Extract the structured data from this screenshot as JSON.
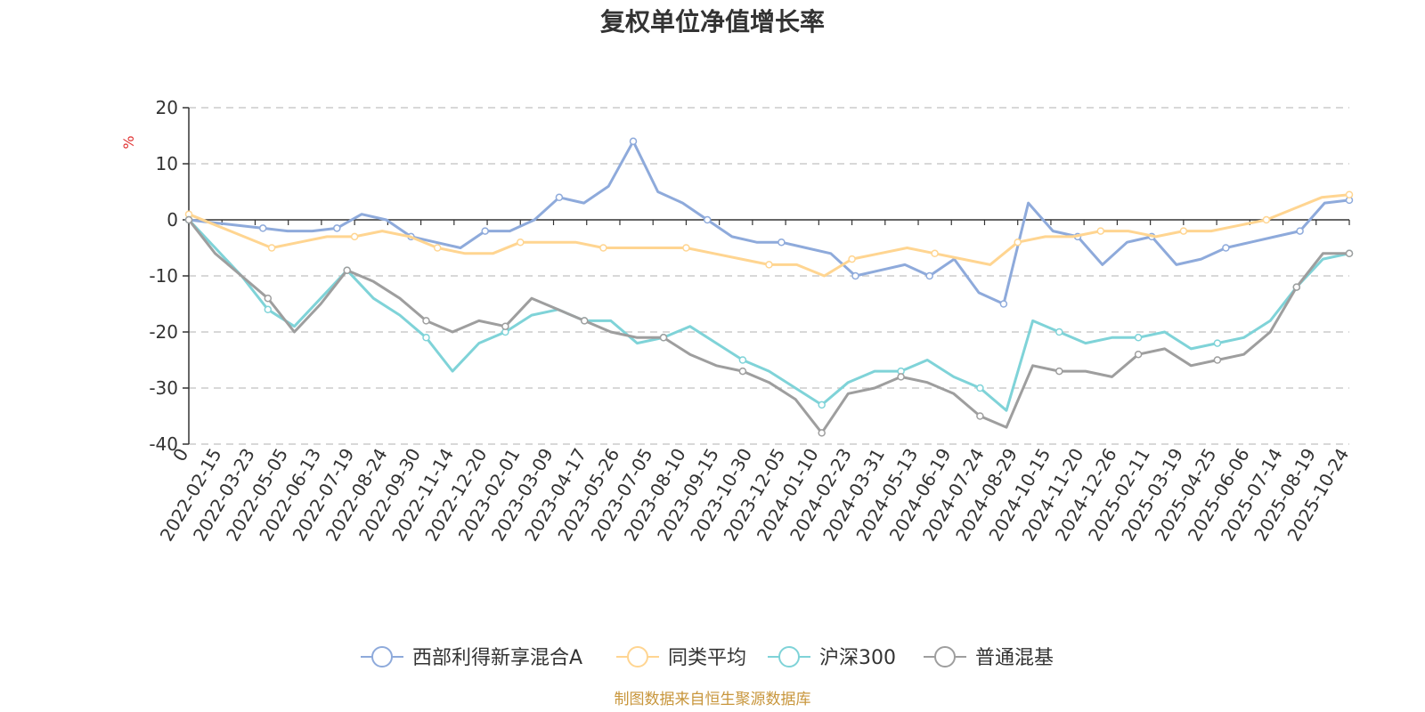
{
  "chart_data": {
    "type": "line",
    "title": "复权单位净值增长率",
    "ylabel": "%",
    "ylim": [
      -40,
      20
    ],
    "yticks": [
      20,
      10,
      0,
      -10,
      -20,
      -30,
      -40
    ],
    "grid": true,
    "legend": "bottom",
    "x_tick_labels": [
      "0",
      "2022-02-15",
      "2022-03-23",
      "2022-05-05",
      "2022-06-13",
      "2022-07-19",
      "2022-08-24",
      "2022-09-30",
      "2022-11-14",
      "2022-12-20",
      "2023-02-01",
      "2023-03-09",
      "2023-04-17",
      "2023-05-26",
      "2023-07-05",
      "2023-08-10",
      "2023-09-15",
      "2023-10-30",
      "2023-12-05",
      "2024-01-10",
      "2024-02-23",
      "2024-03-31",
      "2024-05-13",
      "2024-06-19",
      "2024-07-24",
      "2024-08-29",
      "2024-10-15",
      "2024-11-20",
      "2024-12-26",
      "2025-02-11",
      "2025-03-19",
      "2025-04-25",
      "2025-06-06",
      "2025-07-14",
      "2025-08-19",
      "2025-10-24"
    ],
    "series": [
      {
        "name": "西部利得新享混合A",
        "color": "#8eaadb",
        "values": [
          0,
          -0.5,
          -1,
          -1.5,
          -2,
          -2,
          -1.5,
          1,
          0,
          -3,
          -4,
          -5,
          -2,
          -2,
          0,
          4,
          3,
          6,
          14,
          5,
          3,
          0,
          -3,
          -4,
          -4,
          -5,
          -6,
          -10,
          -9,
          -8,
          -10,
          -7,
          -13,
          -15,
          3,
          -2,
          -3,
          -8,
          -4,
          -3,
          -8,
          -7,
          -5,
          -4,
          -3,
          -2,
          3,
          3.5
        ]
      },
      {
        "name": "同类平均",
        "color": "#ffd591",
        "values": [
          1,
          -1,
          -3,
          -5,
          -4,
          -3,
          -3,
          -2,
          -3,
          -5,
          -6,
          -6,
          -4,
          -4,
          -4,
          -5,
          -5,
          -5,
          -5,
          -6,
          -7,
          -8,
          -8,
          -10,
          -7,
          -6,
          -5,
          -6,
          -7,
          -8,
          -4,
          -3,
          -3,
          -2,
          -2,
          -3,
          -2,
          -2,
          -1,
          0,
          2,
          4,
          4.5
        ]
      },
      {
        "name": "沪深300",
        "color": "#7fd3d8",
        "values": [
          0,
          -5,
          -10,
          -16,
          -19,
          -14,
          -9,
          -14,
          -17,
          -21,
          -27,
          -22,
          -20,
          -17,
          -16,
          -18,
          -18,
          -22,
          -21,
          -19,
          -22,
          -25,
          -27,
          -30,
          -33,
          -29,
          -27,
          -27,
          -25,
          -28,
          -30,
          -34,
          -18,
          -20,
          -22,
          -21,
          -21,
          -20,
          -23,
          -22,
          -21,
          -18,
          -12,
          -7,
          -6
        ]
      },
      {
        "name": "普通混基",
        "color": "#9e9e9e",
        "values": [
          0,
          -6,
          -10,
          -14,
          -20,
          -15,
          -9,
          -11,
          -14,
          -18,
          -20,
          -18,
          -19,
          -14,
          -16,
          -18,
          -20,
          -21,
          -21,
          -24,
          -26,
          -27,
          -29,
          -32,
          -38,
          -31,
          -30,
          -28,
          -29,
          -31,
          -35,
          -37,
          -26,
          -27,
          -27,
          -28,
          -24,
          -23,
          -26,
          -25,
          -24,
          -20,
          -12,
          -6,
          -6
        ]
      }
    ]
  },
  "source_text": "制图数据来自恒生聚源数据库"
}
